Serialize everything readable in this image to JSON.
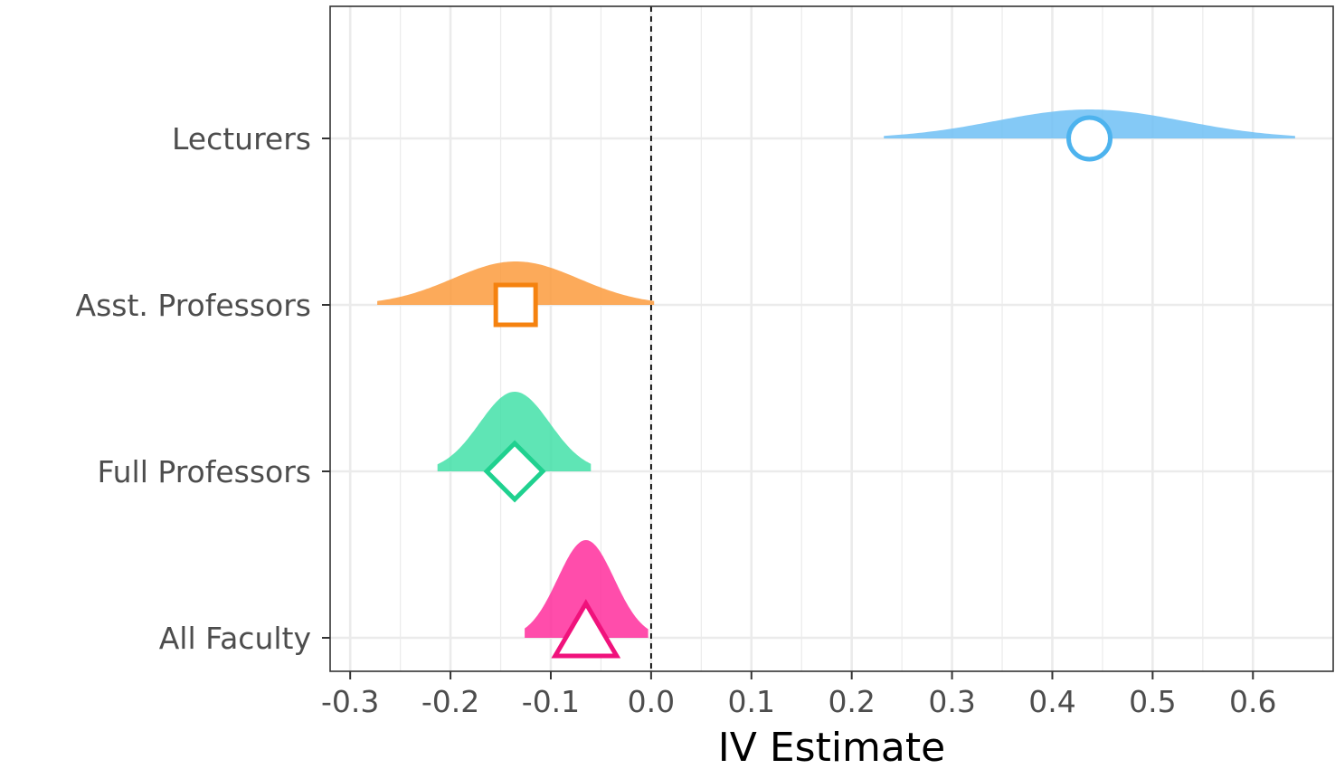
{
  "chart_data": {
    "type": "density-ridge",
    "title": "",
    "xlabel": "IV Estimate",
    "ylabel": "",
    "xlim": [
      -0.32,
      0.68
    ],
    "x_ticks": [
      -0.3,
      -0.2,
      -0.1,
      0.0,
      0.1,
      0.2,
      0.3,
      0.4,
      0.5,
      0.6
    ],
    "x_tick_labels": [
      "-0.3",
      "-0.2",
      "-0.1",
      "0.0",
      "0.1",
      "0.2",
      "0.3",
      "0.4",
      "0.5",
      "0.6"
    ],
    "reference_line": {
      "x": 0.0,
      "style": "dashed"
    },
    "grid": true,
    "legend": "none",
    "categories": [
      "Lecturers",
      "Asst. Professors",
      "Full Professors",
      "All Faculty"
    ],
    "series": [
      {
        "category": "Lecturers",
        "estimate": 0.437,
        "interval": [
          0.232,
          0.642
        ],
        "marker": "circle",
        "color": "#4db3ee",
        "fill": "#6ec0f5"
      },
      {
        "category": "Asst. Professors",
        "estimate": -0.135,
        "interval": [
          -0.273,
          0.003
        ],
        "marker": "square",
        "color": "#f5820f",
        "fill": "#fc9b3d"
      },
      {
        "category": "Full Professors",
        "estimate": -0.136,
        "interval": [
          -0.213,
          -0.06
        ],
        "marker": "diamond",
        "color": "#1fd18f",
        "fill": "#43e0a8"
      },
      {
        "category": "All Faculty",
        "estimate": -0.065,
        "interval": [
          -0.126,
          -0.003
        ],
        "marker": "triangle",
        "color": "#f0127c",
        "fill": "#ff2e9c"
      }
    ]
  }
}
